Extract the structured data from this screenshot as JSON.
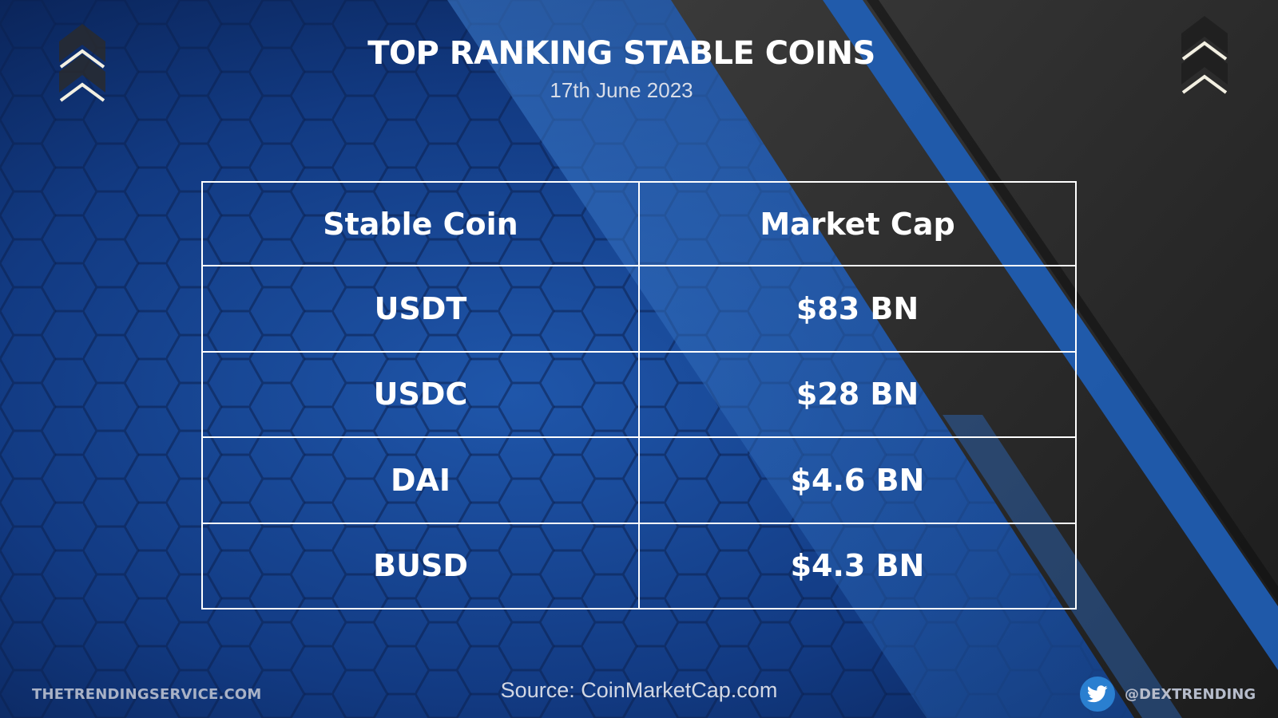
{
  "header": {
    "title": "TOP RANKING STABLE COINS",
    "date": "17th June 2023"
  },
  "table": {
    "headers": [
      "Stable Coin",
      "Market Cap"
    ],
    "rows": [
      {
        "coin": "USDT",
        "market_cap": "$83 BN"
      },
      {
        "coin": "USDC",
        "market_cap": "$28 BN"
      },
      {
        "coin": "DAI",
        "market_cap": "$4.6 BN"
      },
      {
        "coin": "BUSD",
        "market_cap": "$4.3 BN"
      }
    ]
  },
  "footer": {
    "website": "THETRENDINGSERVICE.COM",
    "source": "Source: CoinMarketCap.com",
    "twitter_handle": "@DEXTRENDING",
    "twitter_icon": "twitter-bird-icon"
  },
  "decor": {
    "left_icon": "double-chevron-up-icon",
    "right_icon": "double-chevron-up-icon"
  },
  "colors": {
    "background_blue": "#0d2a66",
    "stripe_blue": "#2f6fc4",
    "dark_panel": "#2b2b2b",
    "text": "#ffffff",
    "twitter_blue": "#2a7fd0"
  }
}
